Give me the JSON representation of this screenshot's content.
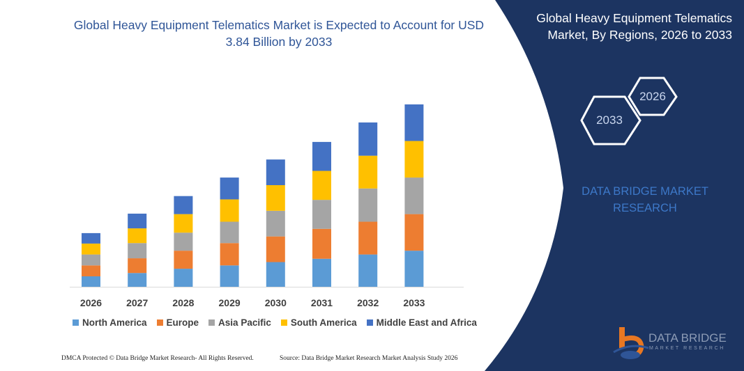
{
  "title": "Global Heavy Equipment Telematics Market is Expected to Account for USD 3.84 Billion by 2033",
  "panel": {
    "title": "Global Heavy Equipment Telematics Market, By Regions, 2026 to 2033",
    "hex_start": "2026",
    "hex_end": "2033",
    "watermark_text": "DATA BRIDGE MARKET RESEARCH",
    "bg_color": "#1c3461"
  },
  "logo": {
    "name": "DATA BRIDGE",
    "sub": "MARKET RESEARCH"
  },
  "footer": {
    "left": "DMCA Protected © Data Bridge Market Research- All Rights Reserved.",
    "right": "Source: Data Bridge Market Research Market Analysis Study 2026"
  },
  "chart_data": {
    "type": "bar",
    "stacked": true,
    "categories": [
      "2026",
      "2027",
      "2028",
      "2029",
      "2030",
      "2031",
      "2032",
      "2033"
    ],
    "series": [
      {
        "name": "North America",
        "color": "#5b9bd5",
        "values": [
          0.22,
          0.29,
          0.38,
          0.45,
          0.52,
          0.59,
          0.68,
          0.76
        ]
      },
      {
        "name": "Europe",
        "color": "#ed7d31",
        "values": [
          0.23,
          0.31,
          0.38,
          0.47,
          0.54,
          0.63,
          0.69,
          0.77
        ]
      },
      {
        "name": "Asia Pacific",
        "color": "#a5a5a5",
        "values": [
          0.23,
          0.32,
          0.38,
          0.45,
          0.54,
          0.61,
          0.7,
          0.77
        ]
      },
      {
        "name": "South America",
        "color": "#ffc000",
        "values": [
          0.23,
          0.31,
          0.39,
          0.47,
          0.54,
          0.61,
          0.69,
          0.77
        ]
      },
      {
        "name": "Middle East and Africa",
        "color": "#4472c4",
        "values": [
          0.22,
          0.31,
          0.38,
          0.46,
          0.54,
          0.61,
          0.7,
          0.77
        ]
      }
    ],
    "ylim": [
      0,
      3.84
    ],
    "y_axis_shown": false,
    "grid": false,
    "legend": "bottom"
  }
}
